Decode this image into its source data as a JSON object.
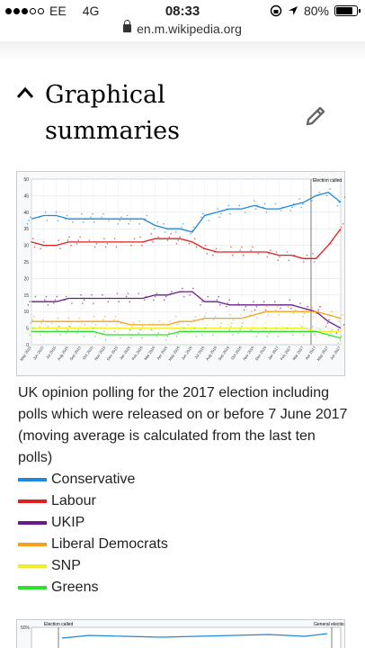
{
  "status": {
    "carrier": "EE",
    "network": "4G",
    "time": "08:33",
    "battery": "80%",
    "battery_level": 0.8,
    "signal_bars": 3
  },
  "browser": {
    "url": "en.m.wikipedia.org"
  },
  "section": {
    "title": "Graphical summaries"
  },
  "chart_data": {
    "type": "line",
    "title": "",
    "annotation": "Election called",
    "y_ticks": [
      0,
      5,
      10,
      15,
      20,
      25,
      30,
      35,
      40,
      45,
      50
    ],
    "ylim": [
      0,
      50
    ],
    "x_ticks": [
      "May 2015",
      "Jun 2015",
      "Jul 2015",
      "Aug 2015",
      "Sep 2015",
      "Oct 2015",
      "Nov 2015",
      "Dec 2015",
      "Jan 2016",
      "Feb 2016",
      "Mar 2016",
      "Apr 2016",
      "May 2016",
      "Jun 2016",
      "Jul 2016",
      "Aug 2016",
      "Sep 2016",
      "Oct 2016",
      "Nov 2016",
      "Dec 2016",
      "Jan 2017",
      "Feb 2017",
      "Mar 2017",
      "Apr 2017",
      "May 2017",
      "Jun 2017"
    ],
    "grid": true,
    "series": [
      {
        "name": "Conservative",
        "color": "#1f88d8",
        "values": [
          38,
          39,
          39,
          38,
          38,
          38,
          38,
          38,
          38,
          38,
          36,
          35,
          35,
          34,
          39,
          40,
          41,
          41,
          42,
          41,
          41,
          42,
          43,
          45,
          46,
          43
        ]
      },
      {
        "name": "Labour",
        "color": "#dd2020",
        "values": [
          31,
          30,
          30,
          31,
          31,
          31,
          31,
          31,
          31,
          31,
          32,
          32,
          32,
          31,
          29,
          28,
          28,
          28,
          28,
          28,
          27,
          27,
          26,
          26,
          30,
          35
        ]
      },
      {
        "name": "UKIP",
        "color": "#6b1a8c",
        "values": [
          13,
          13,
          13,
          14,
          14,
          14,
          14,
          14,
          14,
          14,
          15,
          15,
          16,
          16,
          13,
          13,
          12,
          12,
          12,
          12,
          12,
          12,
          11,
          10,
          7,
          5
        ]
      },
      {
        "name": "Liberal Democrats",
        "color": "#f3a31b",
        "values": [
          7,
          7,
          7,
          7,
          7,
          7,
          7,
          7,
          6,
          6,
          6,
          6,
          7,
          7,
          8,
          8,
          8,
          8,
          9,
          10,
          10,
          10,
          10,
          10,
          9,
          8
        ]
      },
      {
        "name": "SNP",
        "color": "#f0ee2a",
        "values": [
          5,
          5,
          5,
          5,
          5,
          5,
          5,
          5,
          5,
          5,
          5,
          5,
          5,
          5,
          5,
          5,
          5,
          5,
          5,
          5,
          5,
          5,
          5,
          4,
          4,
          4
        ]
      },
      {
        "name": "Greens",
        "color": "#2ee02e",
        "values": [
          4,
          4,
          4,
          4,
          4,
          4,
          3,
          3,
          3,
          3,
          3,
          3,
          4,
          4,
          4,
          4,
          4,
          4,
          4,
          4,
          4,
          4,
          4,
          4,
          3,
          2
        ]
      }
    ]
  },
  "caption": "UK opinion polling for the 2017 election including polls which were released on or before 7 June 2017 (moving average is calculated from the last ten polls)",
  "legend": [
    {
      "label": "Conservative",
      "color": "#1f88d8"
    },
    {
      "label": "Labour",
      "color": "#dd2020"
    },
    {
      "label": "UKIP",
      "color": "#6b1a8c"
    },
    {
      "label": "Liberal Democrats",
      "color": "#f3a31b"
    },
    {
      "label": "SNP",
      "color": "#f0ee2a"
    },
    {
      "label": "Greens",
      "color": "#2ee02e"
    }
  ],
  "second_chart": {
    "label_left": "Election called",
    "label_right": "General election",
    "top_tick": "50%"
  }
}
